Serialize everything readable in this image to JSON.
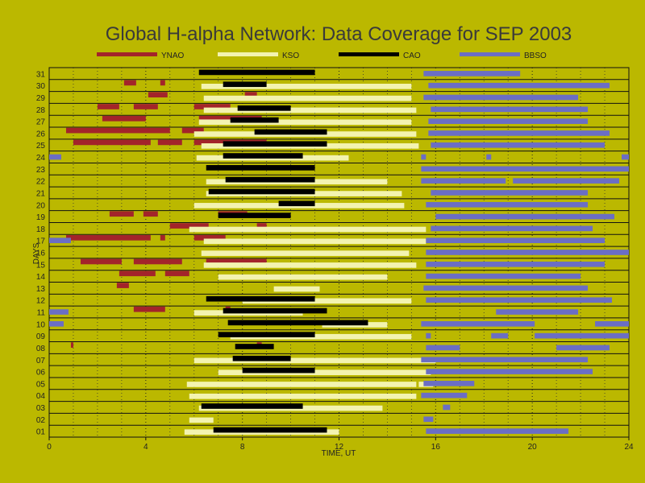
{
  "chart_data": {
    "type": "bar",
    "orientation": "horizontal-timeline",
    "title": "Global H-alpha Network: Data Coverage for SEP 2003",
    "xlabel": "TIME, UT",
    "ylabel": "DAYS",
    "xlim": [
      0,
      24
    ],
    "xticks": [
      0,
      4,
      8,
      12,
      16,
      20,
      24
    ],
    "days": [
      "01",
      "02",
      "03",
      "04",
      "05",
      "06",
      "07",
      "08",
      "09",
      "10",
      "11",
      "12",
      "13",
      "14",
      "15",
      "16",
      "17",
      "18",
      "19",
      "20",
      "21",
      "22",
      "23",
      "24",
      "25",
      "26",
      "27",
      "28",
      "29",
      "30",
      "31"
    ],
    "grid": true,
    "legend_position": "top",
    "series": [
      {
        "name": "YNAO",
        "color": "#a3242a",
        "offset": -0.45,
        "intervals": [
          [
            30,
            3.1,
            3.6
          ],
          [
            30,
            4.6,
            4.8
          ],
          [
            29,
            4.1,
            4.9
          ],
          [
            29,
            8.1,
            8.6
          ],
          [
            28,
            2.0,
            2.9
          ],
          [
            28,
            3.5,
            4.5
          ],
          [
            28,
            6.0,
            7.5
          ],
          [
            27,
            2.2,
            4.0
          ],
          [
            27,
            6.2,
            8.8
          ],
          [
            26,
            0.7,
            5.0
          ],
          [
            26,
            5.5,
            6.4
          ],
          [
            25,
            1.0,
            4.2
          ],
          [
            25,
            4.5,
            5.5
          ],
          [
            25,
            6.0,
            9.0
          ],
          [
            19,
            2.5,
            3.5
          ],
          [
            19,
            3.9,
            4.5
          ],
          [
            19,
            7.0,
            8.2
          ],
          [
            18,
            5.0,
            6.6
          ],
          [
            18,
            8.6,
            9.0
          ],
          [
            17,
            0.7,
            4.2
          ],
          [
            17,
            4.6,
            4.8
          ],
          [
            17,
            6.0,
            7.3
          ],
          [
            15,
            1.3,
            3.0
          ],
          [
            15,
            3.5,
            5.5
          ],
          [
            15,
            6.5,
            9.0
          ],
          [
            14,
            2.9,
            4.4
          ],
          [
            14,
            4.8,
            5.8
          ],
          [
            13,
            2.8,
            3.3
          ],
          [
            11,
            3.5,
            4.8
          ],
          [
            11,
            7.3,
            7.5
          ],
          [
            8,
            0.9,
            1.0
          ],
          [
            8,
            8.6,
            8.8
          ]
        ]
      },
      {
        "name": "KSO",
        "color": "#f3f3b0",
        "offset": 0.15,
        "intervals": [
          [
            30,
            6.3,
            15.0
          ],
          [
            29,
            6.4,
            15.0
          ],
          [
            28,
            6.4,
            15.2
          ],
          [
            27,
            6.2,
            15.0
          ],
          [
            26,
            6.0,
            15.2
          ],
          [
            25,
            6.3,
            15.3
          ],
          [
            24,
            6.1,
            12.4
          ],
          [
            22,
            6.5,
            14.0
          ],
          [
            21,
            6.5,
            14.6
          ],
          [
            20,
            6.0,
            14.7
          ],
          [
            18,
            5.8,
            15.6
          ],
          [
            17,
            6.4,
            15.6
          ],
          [
            16,
            6.3,
            14.9
          ],
          [
            15,
            6.4,
            15.2
          ],
          [
            14,
            7.0,
            14.0
          ],
          [
            13,
            9.3,
            11.2
          ],
          [
            12,
            8.0,
            15.0
          ],
          [
            11,
            6.0,
            10.5
          ],
          [
            10,
            11.3,
            14.0
          ],
          [
            9,
            7.5,
            15.0
          ],
          [
            7,
            6.0,
            16.0
          ],
          [
            6,
            7.0,
            15.8
          ],
          [
            5,
            5.7,
            15.2
          ],
          [
            5,
            15.3,
            15.9
          ],
          [
            4,
            5.8,
            15.2
          ],
          [
            3,
            6.2,
            13.8
          ],
          [
            2,
            5.8,
            6.8
          ],
          [
            1,
            5.6,
            12.0
          ]
        ]
      },
      {
        "name": "CAO",
        "color": "#000000",
        "offset": -0.2,
        "intervals": [
          [
            31,
            6.2,
            11.0
          ],
          [
            30,
            7.2,
            9.0
          ],
          [
            28,
            7.8,
            10.0
          ],
          [
            27,
            7.5,
            9.5
          ],
          [
            26,
            8.5,
            11.5
          ],
          [
            25,
            7.2,
            11.5
          ],
          [
            24,
            7.2,
            10.5
          ],
          [
            23,
            6.5,
            11.0
          ],
          [
            22,
            7.3,
            11.0
          ],
          [
            21,
            6.6,
            11.0
          ],
          [
            20,
            9.5,
            11.0
          ],
          [
            19,
            7.0,
            10.0
          ],
          [
            12,
            6.5,
            11.0
          ],
          [
            11,
            7.2,
            11.5
          ],
          [
            10,
            7.4,
            13.2
          ],
          [
            9,
            7.0,
            11.0
          ],
          [
            8,
            7.7,
            9.3
          ],
          [
            7,
            7.6,
            10.0
          ],
          [
            6,
            8.0,
            11.0
          ],
          [
            3,
            6.3,
            10.5
          ],
          [
            1,
            6.8,
            11.5
          ]
        ]
      },
      {
        "name": "BBSO",
        "color": "#6b6ec4",
        "offset": 0,
        "intervals": [
          [
            31,
            15.5,
            19.5
          ],
          [
            30,
            15.7,
            23.2
          ],
          [
            29,
            15.5,
            21.9
          ],
          [
            28,
            15.8,
            22.3
          ],
          [
            27,
            15.7,
            22.3
          ],
          [
            26,
            15.7,
            23.2
          ],
          [
            25,
            15.8,
            23.0
          ],
          [
            24,
            0.0,
            0.5
          ],
          [
            24,
            15.4,
            15.6
          ],
          [
            24,
            18.1,
            18.3
          ],
          [
            24,
            23.7,
            24.0
          ],
          [
            23,
            15.4,
            24.0
          ],
          [
            22,
            15.4,
            18.9
          ],
          [
            22,
            19.2,
            23.6
          ],
          [
            21,
            15.8,
            22.3
          ],
          [
            20,
            15.6,
            22.3
          ],
          [
            19,
            16.0,
            23.4
          ],
          [
            18,
            15.8,
            22.5
          ],
          [
            17,
            0.0,
            0.9
          ],
          [
            17,
            15.6,
            23.0
          ],
          [
            16,
            15.6,
            24.0
          ],
          [
            15,
            15.6,
            23.0
          ],
          [
            14,
            15.6,
            22.0
          ],
          [
            13,
            15.5,
            22.3
          ],
          [
            12,
            15.6,
            23.3
          ],
          [
            11,
            0.0,
            0.8
          ],
          [
            11,
            18.5,
            21.9
          ],
          [
            10,
            0.0,
            0.6
          ],
          [
            10,
            15.4,
            20.1
          ],
          [
            10,
            22.6,
            24.0
          ],
          [
            9,
            15.6,
            15.8
          ],
          [
            9,
            18.3,
            19.0
          ],
          [
            9,
            20.1,
            24.0
          ],
          [
            8,
            15.6,
            17.0
          ],
          [
            8,
            21.0,
            23.2
          ],
          [
            7,
            15.4,
            22.3
          ],
          [
            6,
            15.6,
            22.5
          ],
          [
            5,
            15.5,
            17.6
          ],
          [
            4,
            15.4,
            17.3
          ],
          [
            3,
            16.3,
            16.6
          ],
          [
            2,
            15.5,
            15.9
          ],
          [
            1,
            15.6,
            21.5
          ]
        ]
      }
    ]
  }
}
